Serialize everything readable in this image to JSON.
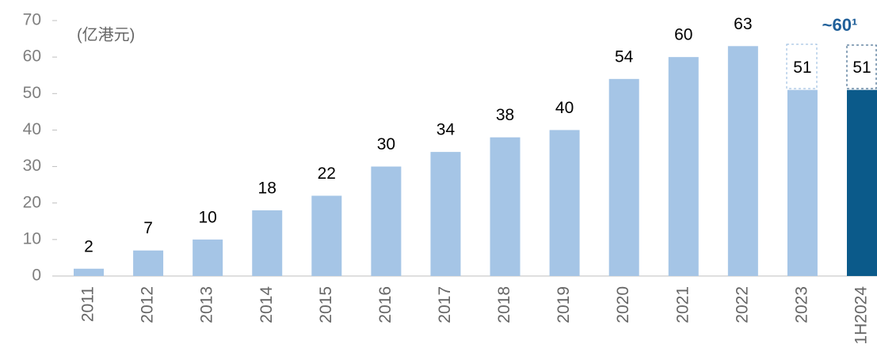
{
  "chart_data": {
    "type": "bar",
    "unit_label": "(亿港元)",
    "annotation": "~60¹",
    "categories": [
      "2011",
      "2012",
      "2013",
      "2014",
      "2015",
      "2016",
      "2017",
      "2018",
      "2019",
      "2020",
      "2021",
      "2022",
      "2023",
      "1H2024"
    ],
    "values": [
      2,
      7,
      10,
      18,
      22,
      30,
      34,
      38,
      40,
      54,
      60,
      63,
      51,
      51
    ],
    "colors": [
      "#a5c5e6",
      "#a5c5e6",
      "#a5c5e6",
      "#a5c5e6",
      "#a5c5e6",
      "#a5c5e6",
      "#a5c5e6",
      "#a5c5e6",
      "#a5c5e6",
      "#a5c5e6",
      "#a5c5e6",
      "#a5c5e6",
      "#a5c5e6",
      "#0b5a8a"
    ],
    "ylim": [
      0,
      70
    ],
    "yticks": [
      0,
      10,
      20,
      30,
      40,
      50,
      60,
      70
    ],
    "grid": false
  }
}
